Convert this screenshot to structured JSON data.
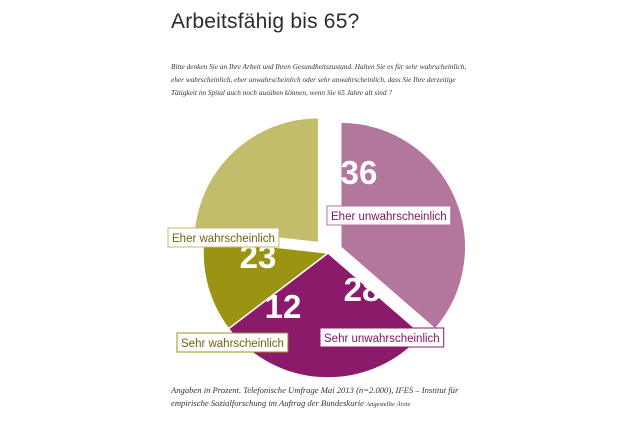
{
  "title": "Arbeitsfähig bis 65?",
  "question": "Bitte denken Sie an Ihre Arbeit und Ihren Gesundheitszustand. Halten Sie es für sehr wahrscheinlich, eher wahrscheinlich, eher unwahrscheinlich oder sehr unwahrscheinlich, dass Sie Ihre derzeitige Tätigkeit im Spital auch noch ausüben können, wenn Sie 65 Jahre alt sind ?",
  "footnote": {
    "main": "Angaben in Prozent. Telefonische Umfrage Mai 2013 (n=2.000), IFES – Institut für empirische Sozialforschung im Auftrag der Bundeskurie",
    "small": "Angestellte Ärzte"
  },
  "chart_data": {
    "type": "pie",
    "unit": "%",
    "slices": [
      {
        "label": "Eher unwahrscheinlich",
        "value": 36,
        "color": "#b3769d",
        "exploded": true
      },
      {
        "label": "Sehr unwahrscheinlich",
        "value": 28,
        "color": "#8b1a6b",
        "exploded": false
      },
      {
        "label": "Sehr wahrscheinlich",
        "value": 12,
        "color": "#9a9412",
        "exploded": false
      },
      {
        "label": "Eher wahrscheinlich",
        "value": 23,
        "color": "#c2bd6a",
        "exploded": true
      }
    ]
  }
}
